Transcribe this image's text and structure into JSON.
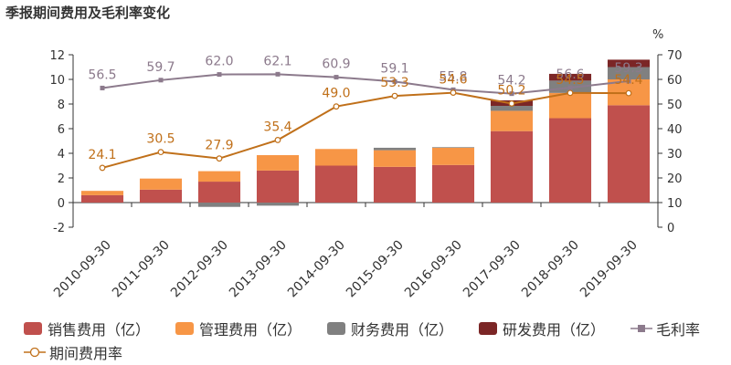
{
  "title": "季报期间费用及毛利率变化",
  "chart_data": {
    "type": "bar",
    "stacked": true,
    "categories": [
      "2010-09-30",
      "2011-09-30",
      "2012-09-30",
      "2013-09-30",
      "2014-09-30",
      "2015-09-30",
      "2016-09-30",
      "2017-09-30",
      "2018-09-30",
      "2019-09-30"
    ],
    "left_axis": {
      "ylim": [
        -2,
        12
      ],
      "ticks": [
        "-2",
        "0",
        "2",
        "4",
        "6",
        "8",
        "10",
        "12"
      ]
    },
    "right_axis": {
      "unit": "%",
      "ylim": [
        0,
        70
      ],
      "ticks": [
        "0",
        "10",
        "20",
        "30",
        "40",
        "50",
        "60",
        "70"
      ]
    },
    "series": [
      {
        "name": "销售费用（亿）",
        "axis": "left",
        "color": "#c0504d",
        "values": [
          0.6,
          1.05,
          1.7,
          2.6,
          3.0,
          2.9,
          3.05,
          5.8,
          6.85,
          7.9
        ]
      },
      {
        "name": "管理费用（亿）",
        "axis": "left",
        "color": "#f79646",
        "values": [
          0.35,
          0.9,
          0.85,
          1.25,
          1.35,
          1.35,
          1.4,
          1.65,
          2.05,
          2.1
        ]
      },
      {
        "name": "财务费用（亿）",
        "axis": "left",
        "color": "#808080",
        "values": [
          0.0,
          0.0,
          -0.35,
          -0.25,
          0.0,
          0.2,
          0.05,
          0.4,
          1.0,
          1.0
        ]
      },
      {
        "name": "研发费用（亿）",
        "axis": "left",
        "color": "#7b2626",
        "values": [
          0,
          0,
          0,
          0,
          0,
          0,
          0,
          0.45,
          0.55,
          0.6
        ]
      },
      {
        "name": "毛利率",
        "axis": "right",
        "type": "line",
        "color": "#8c7a8c",
        "values": [
          56.5,
          59.7,
          62.0,
          62.1,
          60.9,
          59.1,
          55.8,
          54.2,
          56.6,
          59.3
        ]
      },
      {
        "name": "期间费用率",
        "axis": "right",
        "type": "line",
        "color": "#c0701a",
        "values": [
          24.1,
          30.5,
          27.9,
          35.4,
          49.0,
          53.3,
          54.6,
          50.2,
          54.5,
          54.4
        ]
      }
    ],
    "data_labels": {
      "毛利率": [
        "56.5",
        "59.7",
        "62.0",
        "62.1",
        "60.9",
        "59.1",
        "55.8",
        "54.2",
        "56.6",
        "59.3"
      ],
      "期间费用率": [
        "24.1",
        "30.5",
        "27.9",
        "35.4",
        "49.0",
        "53.3",
        "54.6",
        "50.2",
        "54.5",
        "54.4"
      ]
    },
    "legend_position": "bottom",
    "grid": false
  }
}
